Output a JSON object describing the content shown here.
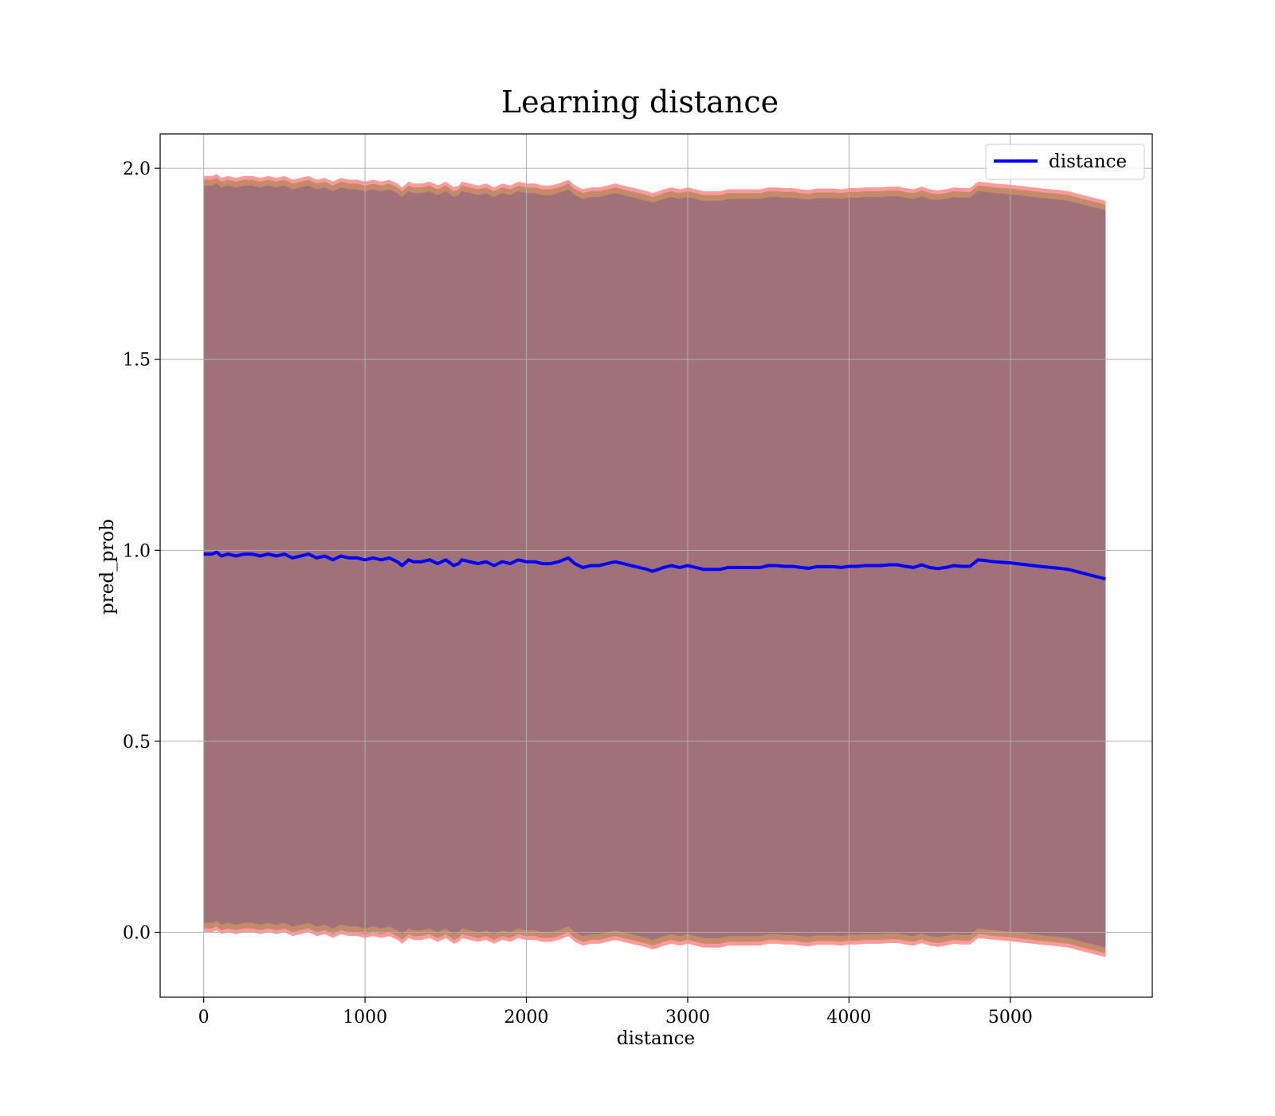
{
  "chart_data": {
    "type": "line",
    "title": "Learning distance",
    "xlabel": "distance",
    "ylabel": "pred_prob",
    "xlim": [
      -270,
      5880
    ],
    "ylim": [
      -0.17,
      2.09
    ],
    "xticks": [
      0,
      1000,
      2000,
      3000,
      4000,
      5000
    ],
    "yticks": [
      0.0,
      0.5,
      1.0,
      1.5,
      2.0
    ],
    "xtick_labels": [
      "0",
      "1000",
      "2000",
      "3000",
      "4000",
      "5000"
    ],
    "ytick_labels": [
      "0.0",
      "0.5",
      "1.0",
      "1.5",
      "2.0"
    ],
    "grid": true,
    "legend": {
      "position": "top-right",
      "entries": [
        "distance"
      ]
    },
    "colors": {
      "line": "#0000ff",
      "band_outer": "#ff9a9a",
      "band_middle": "#c58a6a",
      "band_inner": "#a1717a",
      "grid": "#b0b0b0"
    },
    "series": [
      {
        "name": "distance",
        "x": [
          0,
          50,
          80,
          110,
          150,
          200,
          250,
          300,
          350,
          400,
          450,
          500,
          550,
          600,
          650,
          700,
          750,
          800,
          850,
          900,
          950,
          1000,
          1050,
          1100,
          1150,
          1200,
          1230,
          1270,
          1300,
          1350,
          1400,
          1450,
          1500,
          1550,
          1580,
          1600,
          1650,
          1700,
          1750,
          1800,
          1850,
          1900,
          1950,
          2000,
          2050,
          2100,
          2150,
          2200,
          2260,
          2300,
          2350,
          2400,
          2450,
          2500,
          2550,
          2600,
          2650,
          2700,
          2750,
          2780,
          2820,
          2850,
          2900,
          2950,
          3000,
          3050,
          3100,
          3150,
          3200,
          3250,
          3300,
          3350,
          3400,
          3450,
          3500,
          3550,
          3600,
          3650,
          3700,
          3750,
          3800,
          3850,
          3900,
          3950,
          4000,
          4050,
          4100,
          4150,
          4200,
          4250,
          4300,
          4350,
          4400,
          4450,
          4500,
          4550,
          4600,
          4650,
          4700,
          4750,
          4800,
          4850,
          4900,
          5000,
          5100,
          5200,
          5300,
          5360,
          5450,
          5590
        ],
        "values": [
          0.99,
          0.99,
          0.995,
          0.985,
          0.99,
          0.985,
          0.99,
          0.99,
          0.985,
          0.99,
          0.985,
          0.99,
          0.98,
          0.985,
          0.99,
          0.98,
          0.985,
          0.975,
          0.985,
          0.98,
          0.98,
          0.975,
          0.98,
          0.975,
          0.98,
          0.97,
          0.96,
          0.975,
          0.97,
          0.97,
          0.975,
          0.965,
          0.975,
          0.96,
          0.965,
          0.975,
          0.97,
          0.965,
          0.97,
          0.96,
          0.97,
          0.965,
          0.975,
          0.97,
          0.97,
          0.965,
          0.965,
          0.97,
          0.98,
          0.965,
          0.955,
          0.96,
          0.96,
          0.965,
          0.97,
          0.965,
          0.96,
          0.955,
          0.95,
          0.945,
          0.95,
          0.955,
          0.96,
          0.955,
          0.96,
          0.955,
          0.95,
          0.95,
          0.95,
          0.955,
          0.955,
          0.955,
          0.955,
          0.955,
          0.96,
          0.96,
          0.958,
          0.958,
          0.955,
          0.953,
          0.957,
          0.957,
          0.957,
          0.955,
          0.958,
          0.958,
          0.96,
          0.96,
          0.96,
          0.962,
          0.962,
          0.958,
          0.955,
          0.962,
          0.955,
          0.952,
          0.955,
          0.96,
          0.958,
          0.958,
          0.975,
          0.973,
          0.97,
          0.967,
          0.962,
          0.957,
          0.953,
          0.95,
          0.94,
          0.925
        ]
      }
    ],
    "bands": {
      "outer_halfwidth": 0.99,
      "middle_halfwidth": 0.98,
      "inner_halfwidth": 0.965
    }
  }
}
